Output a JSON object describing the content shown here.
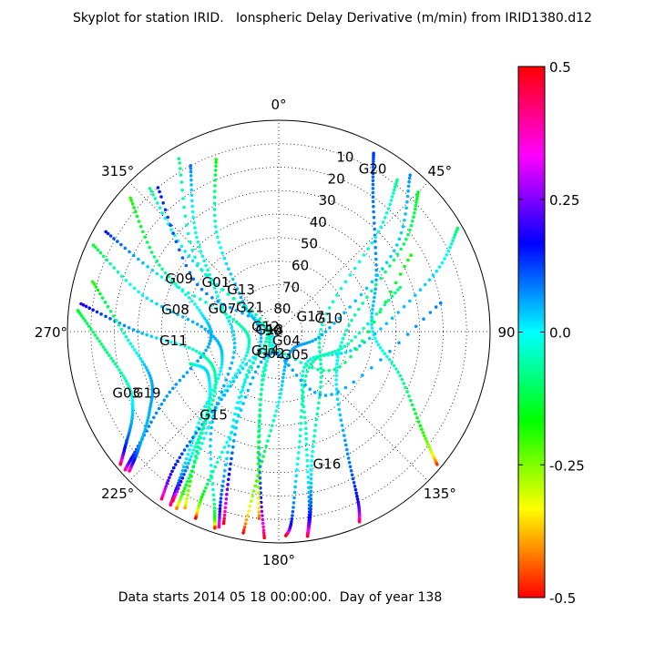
{
  "chart_data": {
    "type": "scatter",
    "projection": "polar-skyplot",
    "title": "Skyplot for station IRID.   Ionspheric Delay Derivative (m/min) from IRID1380.d12",
    "footer": "Data starts 2014 05 18 00:00:00.  Day of year 138",
    "angular_axis": {
      "label": "azimuth",
      "zero_direction": "top",
      "direction": "clockwise",
      "tick_labels": [
        "0°",
        "45°",
        "90",
        "135°",
        "180°",
        "225°",
        "270°",
        "315°"
      ]
    },
    "radial_axis": {
      "label": "elevation",
      "range": [
        90,
        0
      ],
      "ticks": [
        "10",
        "20",
        "30",
        "40",
        "50",
        "60",
        "70",
        "80",
        "90"
      ],
      "grid": "dotted"
    },
    "colorbar": {
      "range": [
        -0.5,
        0.5
      ],
      "ticks": [
        "0.5",
        "0.25",
        "0.0",
        "-0.25",
        "-0.5"
      ],
      "colormap": "hsv-reversed",
      "colors": [
        "#ff0000",
        "#ff8000",
        "#ffff00",
        "#80ff00",
        "#00ff00",
        "#00ff80",
        "#00ffff",
        "#0080ff",
        "#0000ff",
        "#8000ff",
        "#ff00ff",
        "#ff0080",
        "#ff0000"
      ]
    },
    "satellites": [
      {
        "prn": "G20",
        "azimuth": 30,
        "elevation": 10,
        "points": [
          [
            28,
            4
          ],
          [
            35,
            20
          ],
          [
            60,
            42
          ],
          [
            90,
            50
          ],
          [
            110,
            35
          ],
          [
            125,
            15
          ],
          [
            130,
            2
          ]
        ]
      },
      {
        "prn": "G17",
        "azimuth": 65,
        "elevation": 75,
        "points": [
          [
            38,
            8
          ],
          [
            45,
            30
          ],
          [
            75,
            70
          ],
          [
            140,
            62
          ],
          [
            165,
            35
          ],
          [
            170,
            12
          ],
          [
            172,
            2
          ]
        ]
      },
      {
        "prn": "G10",
        "azimuth": 75,
        "elevation": 68,
        "points": [
          [
            45,
            6
          ],
          [
            55,
            25
          ],
          [
            85,
            60
          ],
          [
            130,
            58
          ],
          [
            150,
            32
          ],
          [
            155,
            10
          ],
          [
            157,
            2
          ]
        ]
      },
      {
        "prn": "G04",
        "azimuth": 140,
        "elevation": 85,
        "points": [
          [
            40,
            3
          ],
          [
            55,
            30
          ],
          [
            90,
            70
          ],
          [
            150,
            80
          ],
          [
            180,
            60
          ],
          [
            188,
            30
          ],
          [
            190,
            3
          ]
        ]
      },
      {
        "prn": "G05",
        "azimuth": 145,
        "elevation": 78,
        "points": [
          [
            60,
            2
          ],
          [
            70,
            20
          ],
          [
            100,
            55
          ],
          [
            140,
            72
          ],
          [
            165,
            45
          ],
          [
            170,
            15
          ],
          [
            172,
            2
          ]
        ]
      },
      {
        "prn": "G16",
        "azimuth": 160,
        "elevation": 30,
        "points": [
          [
            70,
            35
          ],
          [
            100,
            60
          ],
          [
            140,
            70
          ],
          [
            170,
            40
          ],
          [
            176,
            10
          ],
          [
            178,
            3
          ]
        ]
      },
      {
        "prn": "G01",
        "azimuth": 308,
        "elevation": 56,
        "points": [
          [
            332,
            10
          ],
          [
            320,
            35
          ],
          [
            300,
            60
          ],
          [
            250,
            70
          ],
          [
            215,
            40
          ],
          [
            200,
            10
          ],
          [
            198,
            2
          ]
        ]
      },
      {
        "prn": "G13",
        "azimuth": 318,
        "elevation": 66,
        "points": [
          [
            340,
            12
          ],
          [
            328,
            40
          ],
          [
            310,
            70
          ],
          [
            250,
            82
          ],
          [
            210,
            55
          ],
          [
            200,
            20
          ],
          [
            197,
            3
          ]
        ]
      },
      {
        "prn": "G21",
        "azimuth": 310,
        "elevation": 74,
        "points": [
          [
            318,
            8
          ],
          [
            310,
            40
          ],
          [
            300,
            78
          ],
          [
            230,
            85
          ],
          [
            195,
            60
          ],
          [
            187,
            25
          ],
          [
            184,
            2
          ]
        ]
      },
      {
        "prn": "G07",
        "azimuth": 292,
        "elevation": 64,
        "points": [
          [
            300,
            5
          ],
          [
            295,
            35
          ],
          [
            285,
            70
          ],
          [
            240,
            75
          ],
          [
            220,
            50
          ],
          [
            212,
            20
          ],
          [
            210,
            3
          ]
        ]
      },
      {
        "prn": "G09",
        "azimuth": 298,
        "elevation": 42,
        "points": [
          [
            312,
            5
          ],
          [
            300,
            30
          ],
          [
            285,
            55
          ],
          [
            260,
            60
          ],
          [
            240,
            35
          ],
          [
            230,
            10
          ],
          [
            228,
            2
          ]
        ]
      },
      {
        "prn": "G08",
        "azimuth": 282,
        "elevation": 45,
        "points": [
          [
            295,
            3
          ],
          [
            285,
            30
          ],
          [
            270,
            60
          ],
          [
            240,
            62
          ],
          [
            222,
            40
          ],
          [
            214,
            15
          ],
          [
            212,
            3
          ]
        ]
      },
      {
        "prn": "G11",
        "azimuth": 265,
        "elevation": 45,
        "points": [
          [
            278,
            5
          ],
          [
            270,
            30
          ],
          [
            255,
            55
          ],
          [
            230,
            55
          ],
          [
            215,
            30
          ],
          [
            208,
            5
          ]
        ]
      },
      {
        "prn": "G03",
        "azimuth": 248,
        "elevation": 20,
        "points": [
          [
            276,
            4
          ],
          [
            265,
            15
          ],
          [
            250,
            22
          ],
          [
            240,
            18
          ],
          [
            233,
            8
          ],
          [
            230,
            2
          ]
        ]
      },
      {
        "prn": "G19",
        "azimuth": 245,
        "elevation": 28,
        "points": [
          [
            285,
            8
          ],
          [
            268,
            25
          ],
          [
            250,
            32
          ],
          [
            238,
            25
          ],
          [
            230,
            12
          ],
          [
            227,
            3
          ]
        ]
      },
      {
        "prn": "G18",
        "azimuth": 280,
        "elevation": 86,
        "points": [
          [
            320,
            10
          ],
          [
            300,
            50
          ],
          [
            280,
            86
          ],
          [
            200,
            70
          ],
          [
            190,
            40
          ],
          [
            186,
            10
          ]
        ]
      },
      {
        "prn": "G12",
        "azimuth": 290,
        "elevation": 84,
        "points": [
          [
            330,
            5
          ],
          [
            310,
            45
          ],
          [
            290,
            84
          ],
          [
            215,
            65
          ],
          [
            200,
            30
          ],
          [
            196,
            5
          ]
        ]
      },
      {
        "prn": "G14",
        "azimuth": 215,
        "elevation": 80,
        "points": [
          [
            60,
            25
          ],
          [
            120,
            60
          ],
          [
            215,
            80
          ],
          [
            220,
            50
          ],
          [
            218,
            20
          ],
          [
            215,
            3
          ]
        ]
      },
      {
        "prn": "G02",
        "azimuth": 200,
        "elevation": 80,
        "points": [
          [
            80,
            20
          ],
          [
            140,
            55
          ],
          [
            200,
            80
          ],
          [
            205,
            45
          ],
          [
            205,
            15
          ],
          [
            204,
            3
          ]
        ]
      },
      {
        "prn": "G15",
        "azimuth": 218,
        "elevation": 45,
        "points": [
          [
            250,
            50
          ],
          [
            240,
            55
          ],
          [
            222,
            45
          ],
          [
            215,
            25
          ],
          [
            212,
            5
          ]
        ]
      }
    ],
    "marks_note": "Tracks drawn as sequences of colored dots along each satellite arc"
  }
}
